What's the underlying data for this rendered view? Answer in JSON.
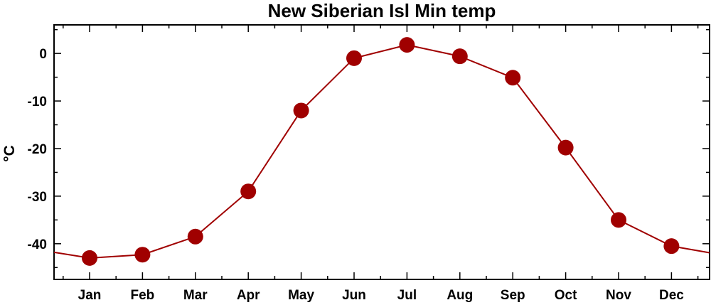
{
  "chart_data": {
    "type": "line",
    "title": "New Siberian Isl Min temp",
    "xlabel": "",
    "ylabel": "°C",
    "categories": [
      "Jan",
      "Feb",
      "Mar",
      "Apr",
      "May",
      "Jun",
      "Jul",
      "Aug",
      "Sep",
      "Oct",
      "Nov",
      "Dec"
    ],
    "series": [
      {
        "values": [
          -43.0,
          -42.3,
          -38.5,
          -29.0,
          -12.0,
          -1.0,
          1.8,
          -0.6,
          -5.1,
          -19.8,
          -35.0,
          -40.5
        ]
      }
    ],
    "wrap_values": {
      "before": -41.8,
      "after": -41.9
    },
    "ylim": [
      -47.5,
      6
    ],
    "yticks": [
      0,
      -10,
      -20,
      -30,
      -40
    ],
    "ytick_labels": [
      "0",
      "-10",
      "-20",
      "-30",
      "-40"
    ],
    "grid": false,
    "colors": {
      "series": "#a00000",
      "marker": "#a00000",
      "line": "#a00000"
    }
  }
}
